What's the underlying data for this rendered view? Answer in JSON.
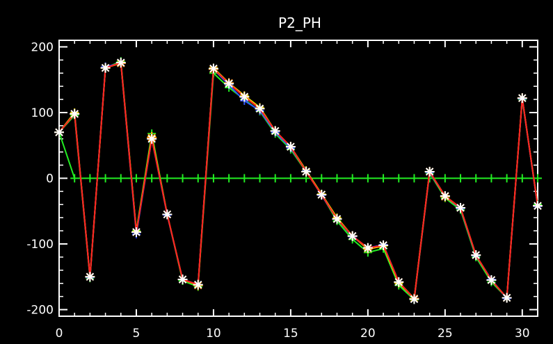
{
  "chart_data": {
    "type": "line",
    "title": "P2_PH",
    "xlabel": "",
    "ylabel": "",
    "xlim": [
      0,
      31
    ],
    "ylim": [
      -210,
      210
    ],
    "xticks": [
      0,
      5,
      10,
      15,
      20,
      25,
      30
    ],
    "xtick_labels": [
      "0",
      "5",
      "10",
      "15",
      "20",
      "25",
      "30"
    ],
    "yticks": [
      -200,
      -100,
      0,
      100,
      200
    ],
    "ytick_labels": [
      "-200",
      "-100",
      "0",
      "100",
      "200"
    ],
    "grid": false,
    "background": "#000000",
    "axis_color": "#ffffff",
    "x": [
      0,
      1,
      2,
      3,
      4,
      5,
      6,
      7,
      8,
      9,
      10,
      11,
      12,
      13,
      14,
      15,
      16,
      17,
      18,
      19,
      20,
      21,
      22,
      23,
      24,
      25,
      26,
      27,
      28,
      29,
      30,
      31
    ],
    "series": [
      {
        "color": "#22ee22",
        "marker": "plus",
        "values": [
          70,
          96,
          -152,
          168,
          178,
          -80,
          68,
          -55,
          -156,
          -165,
          160,
          138,
          120,
          102,
          68,
          44,
          10,
          -25,
          -65,
          -93,
          -113,
          -107,
          -163,
          -185,
          8,
          -30,
          -48,
          -120,
          -158,
          -182,
          120,
          -40
        ]
      },
      {
        "color": "#f0e000",
        "marker": "plus",
        "values": [
          70,
          100,
          -150,
          168,
          176,
          -81,
          64,
          -55,
          -154,
          -163,
          168,
          145,
          126,
          108,
          72,
          48,
          12,
          -24,
          -60,
          -88,
          -108,
          -103,
          -160,
          -183,
          10,
          -27,
          -45,
          -117,
          -155,
          -182,
          122,
          -42
        ]
      },
      {
        "color": "#3050ff",
        "marker": "plus",
        "values": [
          70,
          98,
          -151,
          170,
          175,
          -85,
          60,
          -56,
          -154,
          -162,
          166,
          142,
          118,
          103,
          70,
          46,
          11,
          -26,
          -62,
          -89,
          -106,
          -101,
          -158,
          -184,
          9,
          -28,
          -46,
          -118,
          -154,
          -183,
          121,
          -43
        ]
      },
      {
        "color": "#ff8800",
        "marker": "asterisk",
        "values": [
          70,
          98,
          -150,
          168,
          175,
          -82,
          62,
          -55,
          -154,
          -163,
          166,
          145,
          124,
          106,
          72,
          48,
          10,
          -25,
          -62,
          -88,
          -107,
          -102,
          -158,
          -183,
          10,
          -28,
          -45,
          -117,
          -155,
          -182,
          122,
          -42
        ]
      },
      {
        "color": "#ff2020",
        "marker": "asterisk",
        "values": [
          70,
          98,
          -150,
          168,
          176,
          -82,
          60,
          -55,
          -154,
          -162,
          167,
          144,
          124,
          106,
          72,
          48,
          10,
          -25,
          -62,
          -88,
          -106,
          -102,
          -158,
          -184,
          10,
          -27,
          -45,
          -117,
          -155,
          -182,
          122,
          -42
        ]
      },
      {
        "color": "#22ee22",
        "marker": "plus",
        "values": [
          70,
          0,
          0,
          0,
          0,
          0,
          0,
          0,
          0,
          0,
          0,
          0,
          0,
          0,
          0,
          0,
          0,
          0,
          0,
          0,
          0,
          0,
          0,
          0,
          0,
          0,
          0,
          0,
          0,
          0,
          0,
          0
        ]
      }
    ]
  }
}
